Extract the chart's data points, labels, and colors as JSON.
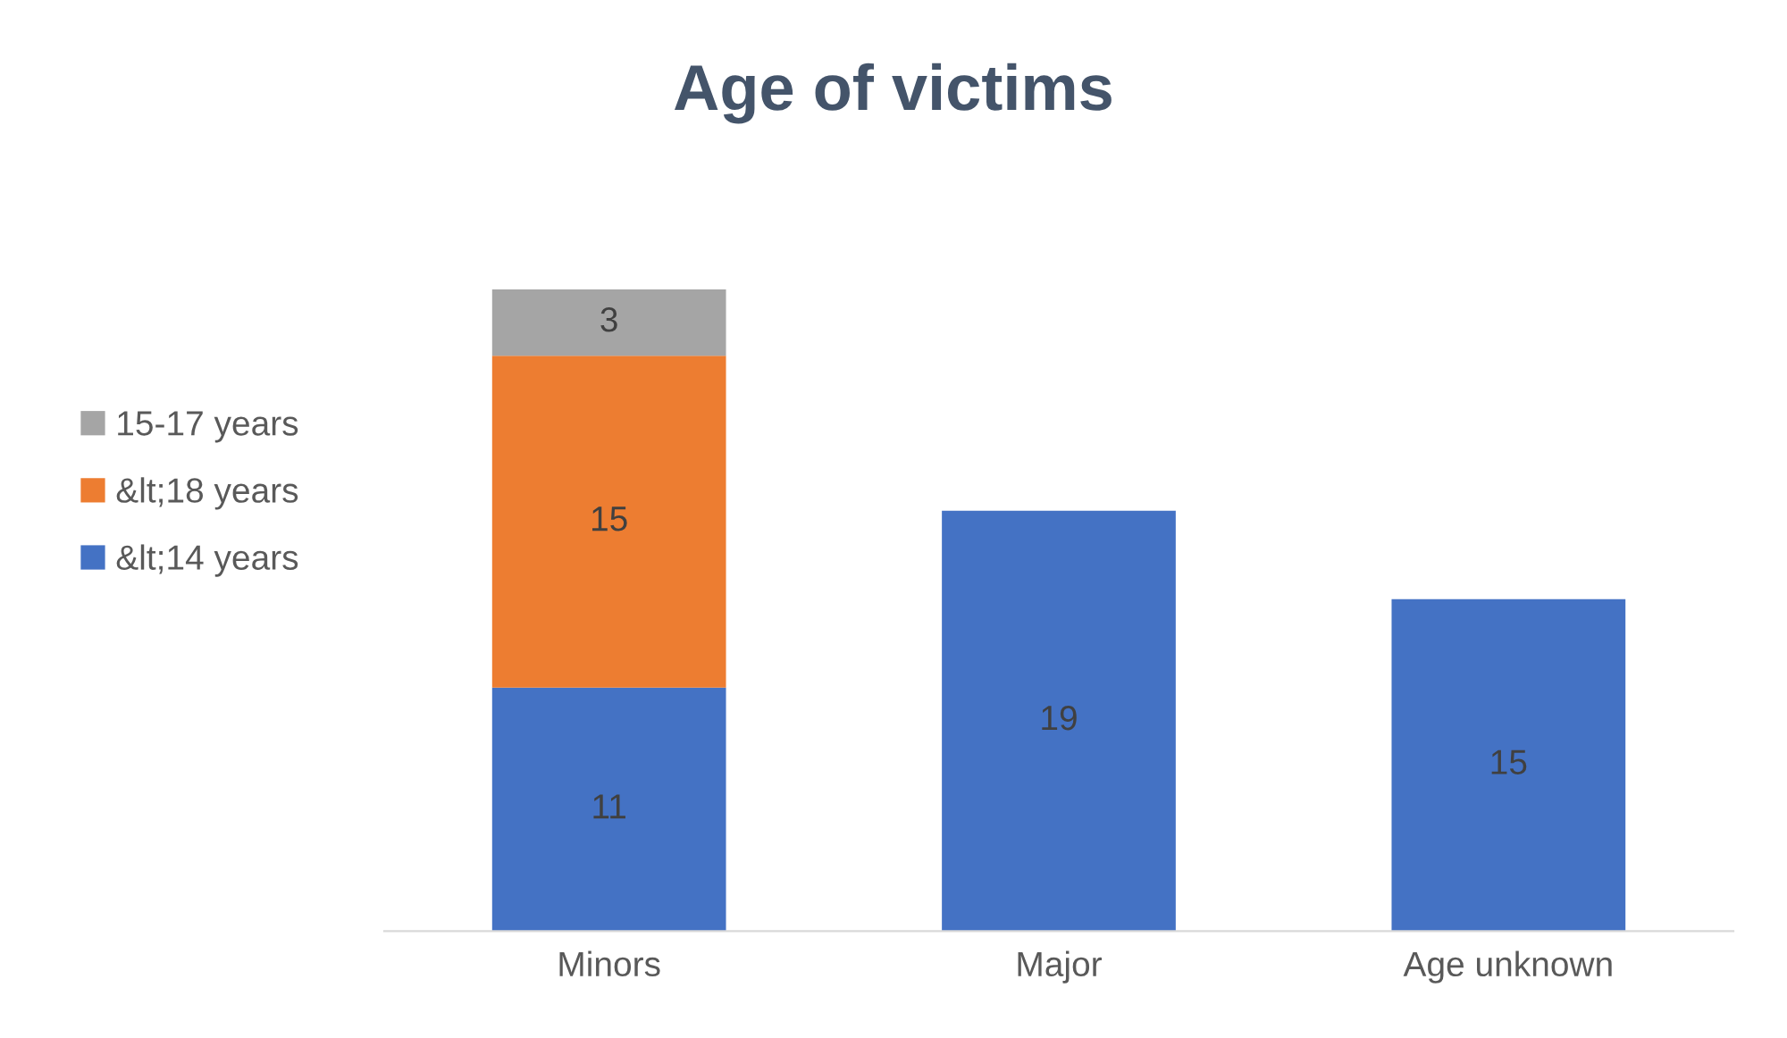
{
  "chart_data": {
    "type": "bar",
    "title": "Age of victims",
    "stacked": true,
    "categories": [
      "Minors",
      "Major",
      "Age unknown"
    ],
    "series": [
      {
        "name": "&lt;14 years",
        "color": "#4472c4",
        "values": [
          11,
          19,
          15
        ]
      },
      {
        "name": "&lt;18 years",
        "color": "#ed7d31",
        "values": [
          15,
          null,
          null
        ]
      },
      {
        "name": "15-17 years",
        "color": "#a5a5a5",
        "values": [
          3,
          null,
          null
        ]
      }
    ],
    "data_labels": true,
    "legend": "left",
    "grid": false,
    "tick_labels": "x"
  }
}
